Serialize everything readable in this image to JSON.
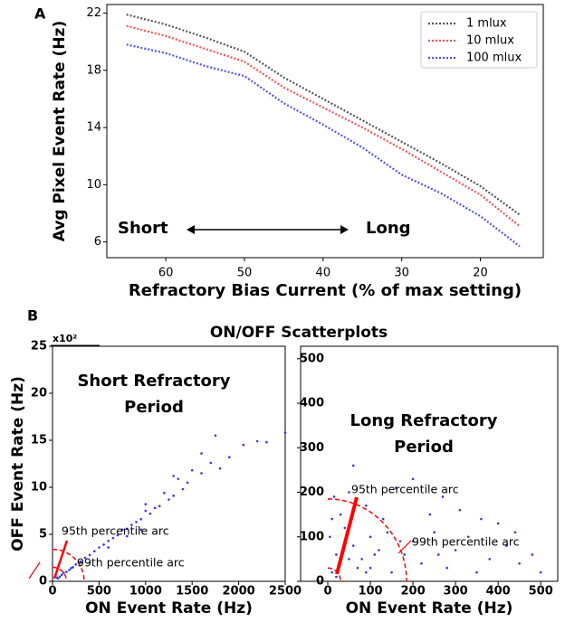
{
  "figure_title": "ON/OFF Scatterplots",
  "chart_data": [
    {
      "type": "line",
      "panel": "A",
      "xlabel": "Refractory Bias Current (% of max setting)",
      "ylabel": "Avg Pixel Event Rate (Hz)",
      "x": [
        65,
        60,
        55,
        50,
        45,
        40,
        35,
        30,
        25,
        20,
        15
      ],
      "series": [
        {
          "name": "1 mlux",
          "color": "#555555",
          "values": [
            21.9,
            21.2,
            20.3,
            19.3,
            17.5,
            16.0,
            14.5,
            13.0,
            11.5,
            9.9,
            7.9
          ]
        },
        {
          "name": "10 mlux",
          "color": "#ff5050",
          "values": [
            21.1,
            20.4,
            19.5,
            18.6,
            16.8,
            15.4,
            14.0,
            12.5,
            10.9,
            9.3,
            7.1
          ]
        },
        {
          "name": "100 mlux",
          "color": "#5050ff",
          "values": [
            19.8,
            19.2,
            18.3,
            17.6,
            15.7,
            14.2,
            12.6,
            10.7,
            9.4,
            7.8,
            5.7
          ]
        }
      ],
      "xlim": [
        67.5,
        12
      ],
      "xticks": [
        60,
        50,
        40,
        30,
        20
      ],
      "ylim": [
        4.9,
        22.6
      ],
      "yticks": [
        6,
        10,
        14,
        18,
        22
      ],
      "legend": "upper right",
      "annotations": [
        "Short",
        "Long"
      ]
    },
    {
      "type": "scatter",
      "panel": "B",
      "xlabel": "ON Event Rate (Hz)",
      "ylabel": "OFF Event Rate (Hz)",
      "y_multiplier": "x10²",
      "panel_text": [
        "Short Refractory",
        "Period"
      ],
      "color": "#3333ff",
      "x": [
        2500,
        2300,
        2200,
        2050,
        1900,
        1750,
        1700,
        1600,
        1500,
        1450,
        1400,
        1350,
        1300,
        1250,
        1200,
        1150,
        1100,
        1050,
        1000,
        950,
        900,
        850,
        800,
        750,
        700,
        650,
        600,
        550,
        500,
        450,
        400,
        350,
        300,
        250,
        200,
        150,
        100,
        50,
        1600,
        1300,
        1000,
        800,
        600,
        1800,
        950,
        120,
        80,
        60,
        180,
        220
      ],
      "y": [
        15.8,
        14.8,
        14.9,
        14.5,
        13.2,
        15.5,
        12.6,
        11.5,
        11.8,
        10.5,
        9.8,
        10.9,
        9.1,
        8.7,
        9.4,
        8.0,
        7.8,
        7.2,
        7.5,
        6.6,
        6.3,
        6.0,
        5.6,
        5.5,
        4.9,
        4.6,
        4.3,
        3.9,
        3.6,
        3.2,
        2.8,
        2.5,
        2.1,
        1.8,
        1.4,
        1.0,
        0.7,
        0.4,
        13.6,
        11.2,
        8.2,
        4.8,
        3.6,
        12.0,
        5.5,
        0.9,
        0.5,
        0.3,
        1.2,
        1.5
      ],
      "arcs": [
        {
          "name": "95th percentile arc",
          "color": "#ff0000",
          "rx": 150,
          "ry": 1.5
        },
        {
          "name": "99th percentile arc",
          "color": "#ff0000",
          "rx": 340,
          "ry": 3.4
        }
      ],
      "xlim": [
        0,
        2500
      ],
      "xticks": [
        0,
        500,
        1000,
        1500,
        2000,
        2500
      ],
      "ylim": [
        0,
        25
      ],
      "yticks": [
        0,
        5,
        10,
        15,
        20,
        25
      ]
    },
    {
      "type": "scatter",
      "xlabel": "ON Event Rate (Hz)",
      "panel_text": [
        "Long Refractory",
        "Period"
      ],
      "color": "#3333ff",
      "x": [
        10,
        20,
        5,
        30,
        15,
        40,
        60,
        80,
        100,
        120,
        150,
        180,
        200,
        220,
        250,
        280,
        300,
        330,
        350,
        380,
        400,
        420,
        450,
        480,
        500,
        50,
        90,
        130,
        160,
        60,
        240,
        310,
        200,
        100,
        70,
        30,
        140,
        270,
        360,
        440,
        20,
        50,
        90,
        110,
        170,
        260,
        40,
        10
      ],
      "y": [
        20,
        60,
        100,
        150,
        190,
        120,
        80,
        50,
        30,
        70,
        20,
        60,
        90,
        40,
        110,
        30,
        70,
        100,
        20,
        50,
        130,
        80,
        40,
        60,
        20,
        200,
        170,
        140,
        210,
        260,
        150,
        160,
        230,
        100,
        30,
        40,
        110,
        190,
        140,
        110,
        10,
        50,
        20,
        60,
        90,
        60,
        80,
        140
      ],
      "arcs": [
        {
          "name": "95th percentile arc",
          "color": "#ff0000",
          "rx": 185,
          "ry": 185
        },
        {
          "name": "99th percentile arc",
          "color": "#ff0000",
          "rx": 30,
          "ry": 30
        }
      ],
      "xlim": [
        0,
        540
      ],
      "xticks": [
        0,
        100,
        200,
        300,
        400,
        500
      ],
      "ylim": [
        0,
        528
      ],
      "yticks": [
        0,
        100,
        200,
        300,
        400,
        500
      ]
    }
  ]
}
